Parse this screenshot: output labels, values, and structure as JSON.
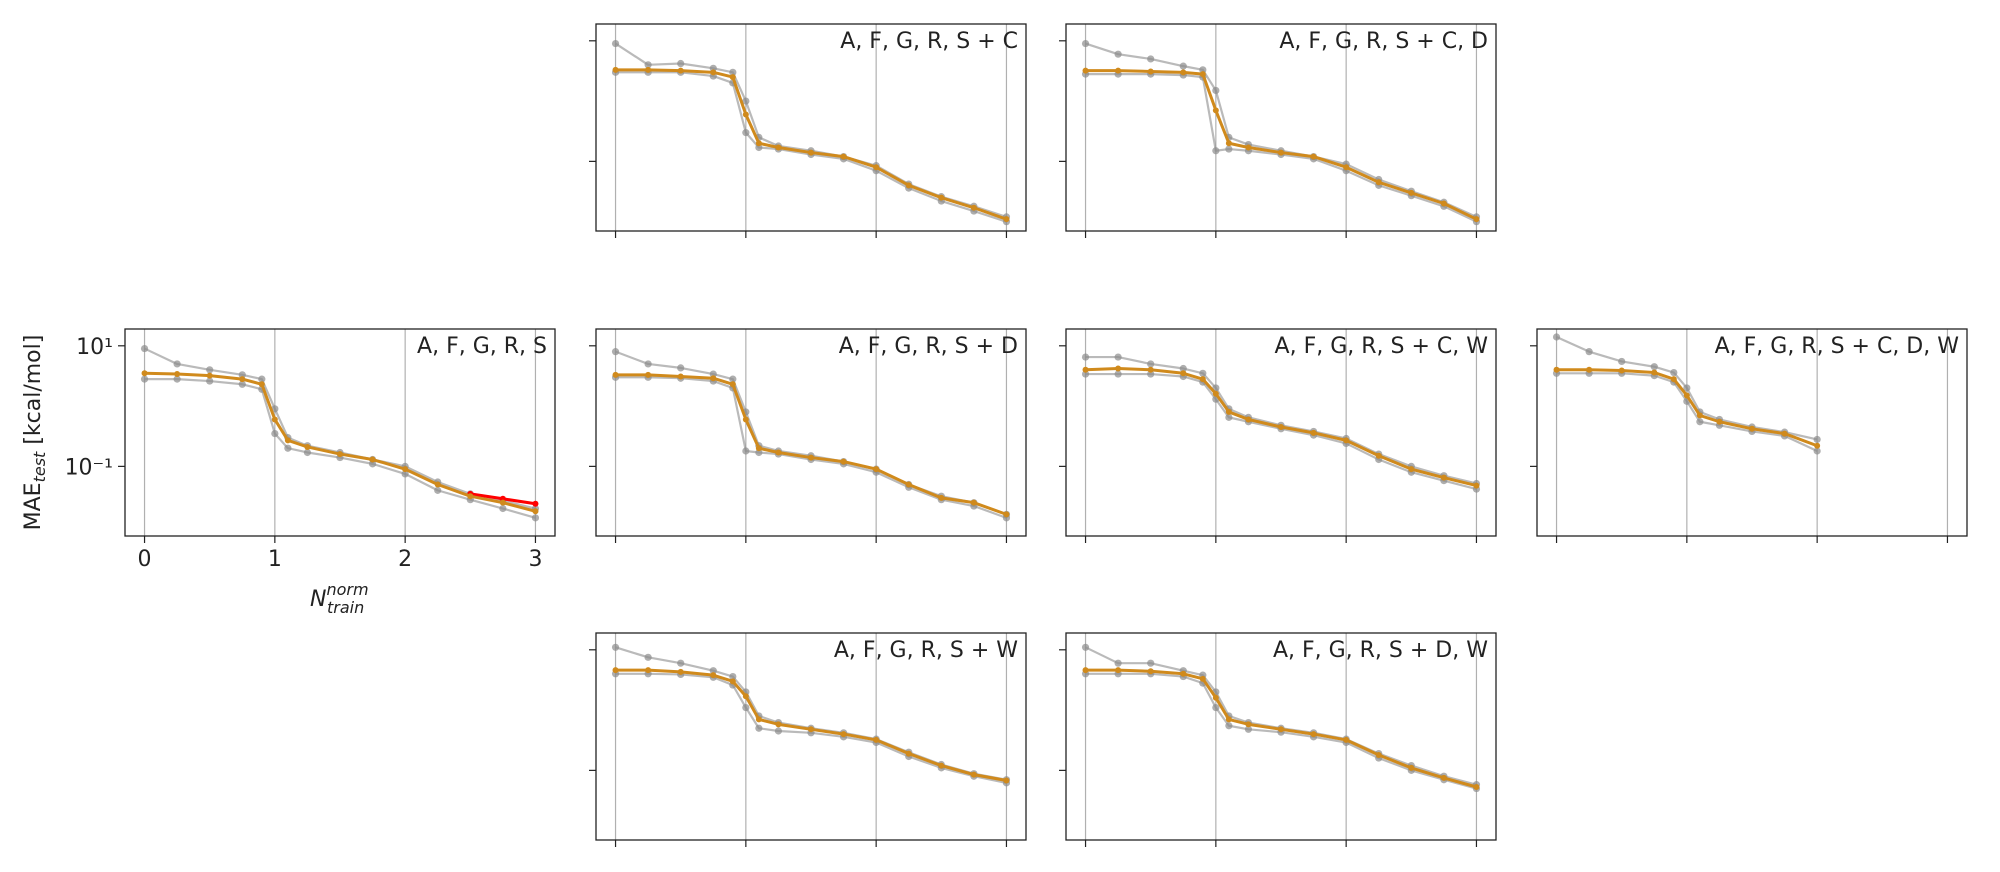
{
  "chart_data": [
    {
      "type": "line",
      "title": "A, F, G, R, S",
      "log_y": true,
      "grid_x": true,
      "tick_labels": true,
      "ylabel": "MAE",
      "ylabel_sub": "test",
      "ylabel_unit": "[kcal/mol]",
      "xlabel": "N",
      "xlabel_sup": "norm",
      "xlabel_sub": "train",
      "xlim": [
        -0.15,
        3.15
      ],
      "ylim": [
        0.007,
        19
      ],
      "xticks": [
        0,
        1,
        2,
        3
      ],
      "yticks": [
        {
          "value": 0.1,
          "label": "10⁻¹"
        },
        {
          "value": 10,
          "label": "10¹"
        }
      ],
      "x": [
        0,
        0.25,
        0.5,
        0.75,
        0.9,
        1,
        1.1,
        1.25,
        1.5,
        1.75,
        2,
        2.25,
        2.5,
        2.75,
        3
      ],
      "series": [
        {
          "color": "#8c8c8c",
          "values": [
            9,
            5,
            4,
            3.3,
            2.8,
            0.9,
            0.3,
            0.22,
            0.17,
            0.13,
            0.1,
            0.055,
            0.035,
            0.027,
            0.02
          ]
        },
        {
          "color": "#8c8c8c",
          "values": [
            2.8,
            2.8,
            2.6,
            2.3,
            1.9,
            0.35,
            0.2,
            0.17,
            0.14,
            0.11,
            0.075,
            0.04,
            0.028,
            0.02,
            0.014
          ]
        },
        {
          "color": "#ff0000",
          "values": [
            null,
            null,
            null,
            null,
            null,
            null,
            null,
            null,
            null,
            null,
            null,
            null,
            0.035,
            0.029,
            0.024
          ]
        },
        {
          "color": "#d08a1c",
          "values": [
            3.5,
            3.4,
            3.2,
            2.8,
            2.3,
            0.6,
            0.27,
            0.21,
            0.16,
            0.13,
            0.09,
            0.05,
            0.032,
            0.025,
            0.018
          ]
        }
      ]
    },
    {
      "type": "line",
      "title": "A, F, G, R, S + C",
      "log_y": true,
      "grid_x": true,
      "tick_labels": false,
      "xlim": [
        -0.15,
        3.15
      ],
      "ylim": [
        0.007,
        19
      ],
      "xticks": [
        0,
        1,
        2,
        3
      ],
      "yticks": [
        0.1,
        10
      ],
      "x": [
        0,
        0.25,
        0.5,
        0.75,
        0.9,
        1,
        1.1,
        1.25,
        1.5,
        1.75,
        2,
        2.25,
        2.5,
        2.75,
        3
      ],
      "series": [
        {
          "color": "#8c8c8c",
          "values": [
            9,
            4,
            4.2,
            3.5,
            3,
            1,
            0.25,
            0.18,
            0.15,
            0.12,
            0.085,
            0.042,
            0.026,
            0.018,
            0.012
          ]
        },
        {
          "color": "#8c8c8c",
          "values": [
            3,
            3,
            3,
            2.6,
            2,
            0.3,
            0.17,
            0.16,
            0.13,
            0.11,
            0.07,
            0.036,
            0.022,
            0.015,
            0.01
          ]
        },
        {
          "color": "#d08a1c",
          "values": [
            3.3,
            3.3,
            3.2,
            3,
            2.5,
            0.6,
            0.2,
            0.17,
            0.14,
            0.12,
            0.08,
            0.04,
            0.025,
            0.017,
            0.011
          ]
        }
      ]
    },
    {
      "type": "line",
      "title": "A, F, G, R, S + C, D",
      "log_y": true,
      "grid_x": true,
      "tick_labels": false,
      "xlim": [
        -0.15,
        3.15
      ],
      "ylim": [
        0.007,
        19
      ],
      "xticks": [
        0,
        1,
        2,
        3
      ],
      "yticks": [
        0.1,
        10
      ],
      "x": [
        0,
        0.25,
        0.5,
        0.75,
        0.9,
        1,
        1.1,
        1.25,
        1.5,
        1.75,
        2,
        2.25,
        2.5,
        2.75,
        3
      ],
      "series": [
        {
          "color": "#8c8c8c",
          "values": [
            9,
            6,
            5,
            3.8,
            3.3,
            1.5,
            0.25,
            0.19,
            0.15,
            0.12,
            0.09,
            0.05,
            0.032,
            0.021,
            0.012
          ]
        },
        {
          "color": "#8c8c8c",
          "values": [
            2.8,
            2.8,
            2.8,
            2.7,
            2.5,
            0.15,
            0.16,
            0.15,
            0.13,
            0.11,
            0.07,
            0.04,
            0.027,
            0.018,
            0.01
          ]
        },
        {
          "color": "#d08a1c",
          "values": [
            3.2,
            3.2,
            3.1,
            3,
            2.8,
            0.7,
            0.2,
            0.17,
            0.14,
            0.12,
            0.08,
            0.045,
            0.03,
            0.02,
            0.011
          ]
        }
      ]
    },
    {
      "type": "line",
      "title": "A, F, G, R, S + D",
      "log_y": true,
      "grid_x": true,
      "tick_labels": false,
      "xlim": [
        -0.15,
        3.15
      ],
      "ylim": [
        0.007,
        19
      ],
      "xticks": [
        0,
        1,
        2,
        3
      ],
      "yticks": [
        0.1,
        10
      ],
      "x": [
        0,
        0.25,
        0.5,
        0.75,
        0.9,
        1,
        1.1,
        1.25,
        1.5,
        1.75,
        2,
        2.25,
        2.5,
        2.75,
        3
      ],
      "series": [
        {
          "color": "#8c8c8c",
          "values": [
            8,
            5,
            4.3,
            3.4,
            2.8,
            0.8,
            0.22,
            0.18,
            0.15,
            0.12,
            0.09,
            0.05,
            0.032,
            0.025,
            0.016
          ]
        },
        {
          "color": "#8c8c8c",
          "values": [
            3,
            3,
            2.9,
            2.6,
            2,
            0.18,
            0.17,
            0.16,
            0.13,
            0.11,
            0.08,
            0.045,
            0.028,
            0.022,
            0.014
          ]
        },
        {
          "color": "#d08a1c",
          "values": [
            3.3,
            3.3,
            3.1,
            2.9,
            2.3,
            0.6,
            0.2,
            0.17,
            0.14,
            0.12,
            0.09,
            0.05,
            0.03,
            0.025,
            0.016
          ]
        }
      ]
    },
    {
      "type": "line",
      "title": "A, F, G, R, S + C, W",
      "log_y": true,
      "grid_x": true,
      "tick_labels": false,
      "xlim": [
        -0.15,
        3.15
      ],
      "ylim": [
        0.007,
        19
      ],
      "xticks": [
        0,
        1,
        2,
        3
      ],
      "yticks": [
        0.1,
        10
      ],
      "x": [
        0,
        0.25,
        0.5,
        0.75,
        0.9,
        1,
        1.1,
        1.25,
        1.5,
        1.75,
        2,
        2.25,
        2.5,
        2.75,
        3
      ],
      "series": [
        {
          "color": "#8c8c8c",
          "values": [
            6.5,
            6.5,
            5,
            4.2,
            3.5,
            2,
            0.9,
            0.65,
            0.48,
            0.38,
            0.29,
            0.16,
            0.1,
            0.07,
            0.052
          ]
        },
        {
          "color": "#8c8c8c",
          "values": [
            3.4,
            3.4,
            3.4,
            3.1,
            2.5,
            1.3,
            0.65,
            0.55,
            0.42,
            0.33,
            0.24,
            0.13,
            0.08,
            0.058,
            0.042
          ]
        },
        {
          "color": "#d08a1c",
          "values": [
            4,
            4.2,
            4,
            3.5,
            2.8,
            1.6,
            0.8,
            0.6,
            0.45,
            0.36,
            0.27,
            0.15,
            0.09,
            0.065,
            0.048
          ]
        }
      ]
    },
    {
      "type": "line",
      "title": "A, F, G, R, S + C, D, W",
      "log_y": true,
      "grid_x": true,
      "tick_labels": false,
      "xlim": [
        -0.15,
        3.15
      ],
      "ylim": [
        0.007,
        19
      ],
      "xticks": [
        0,
        1,
        2,
        3
      ],
      "yticks": [
        0.1,
        10
      ],
      "x": [
        0,
        0.25,
        0.5,
        0.75,
        0.9,
        1,
        1.1,
        1.25,
        1.5,
        1.75,
        2
      ],
      "series": [
        {
          "color": "#8c8c8c",
          "values": [
            14,
            8,
            5.5,
            4.5,
            3.6,
            2,
            0.8,
            0.6,
            0.45,
            0.37,
            0.28
          ]
        },
        {
          "color": "#8c8c8c",
          "values": [
            3.5,
            3.5,
            3.5,
            3.2,
            2.5,
            1.2,
            0.55,
            0.48,
            0.38,
            0.32,
            0.18
          ]
        },
        {
          "color": "#d08a1c",
          "values": [
            4,
            4,
            3.9,
            3.6,
            2.8,
            1.5,
            0.7,
            0.55,
            0.42,
            0.35,
            0.22
          ]
        }
      ]
    },
    {
      "type": "line",
      "title": "A, F, G, R, S + W",
      "log_y": true,
      "grid_x": true,
      "tick_labels": false,
      "xlim": [
        -0.15,
        3.15
      ],
      "ylim": [
        0.007,
        19
      ],
      "xticks": [
        0,
        1,
        2,
        3
      ],
      "yticks": [
        0.1,
        10
      ],
      "x": [
        0,
        0.25,
        0.5,
        0.75,
        0.9,
        1,
        1.1,
        1.25,
        1.5,
        1.75,
        2,
        2.25,
        2.5,
        2.75,
        3
      ],
      "series": [
        {
          "color": "#8c8c8c",
          "values": [
            11,
            7.5,
            6,
            4.5,
            3.6,
            2,
            0.8,
            0.62,
            0.5,
            0.42,
            0.33,
            0.2,
            0.125,
            0.088,
            0.07
          ]
        },
        {
          "color": "#8c8c8c",
          "values": [
            4,
            4,
            3.9,
            3.5,
            2.6,
            1.1,
            0.5,
            0.45,
            0.42,
            0.36,
            0.29,
            0.17,
            0.11,
            0.08,
            0.062
          ]
        },
        {
          "color": "#d08a1c",
          "values": [
            4.6,
            4.6,
            4.3,
            3.8,
            3,
            1.7,
            0.7,
            0.58,
            0.48,
            0.4,
            0.32,
            0.19,
            0.12,
            0.085,
            0.068
          ]
        }
      ]
    },
    {
      "type": "line",
      "title": "A, F, G, R, S + D, W",
      "log_y": true,
      "grid_x": true,
      "tick_labels": false,
      "xlim": [
        -0.15,
        3.15
      ],
      "ylim": [
        0.007,
        19
      ],
      "xticks": [
        0,
        1,
        2,
        3
      ],
      "yticks": [
        0.1,
        10
      ],
      "x": [
        0,
        0.25,
        0.5,
        0.75,
        0.9,
        1,
        1.1,
        1.25,
        1.5,
        1.75,
        2,
        2.25,
        2.5,
        2.75,
        3
      ],
      "series": [
        {
          "color": "#8c8c8c",
          "values": [
            11,
            6,
            6,
            4.5,
            3.8,
            2,
            0.8,
            0.62,
            0.5,
            0.42,
            0.33,
            0.19,
            0.12,
            0.08,
            0.058
          ]
        },
        {
          "color": "#8c8c8c",
          "values": [
            4,
            4,
            4,
            3.6,
            2.8,
            1.1,
            0.55,
            0.48,
            0.43,
            0.36,
            0.29,
            0.16,
            0.1,
            0.07,
            0.05
          ]
        },
        {
          "color": "#d08a1c",
          "values": [
            4.6,
            4.6,
            4.4,
            4,
            3.3,
            1.6,
            0.7,
            0.58,
            0.48,
            0.4,
            0.32,
            0.18,
            0.11,
            0.075,
            0.053
          ]
        }
      ]
    }
  ]
}
